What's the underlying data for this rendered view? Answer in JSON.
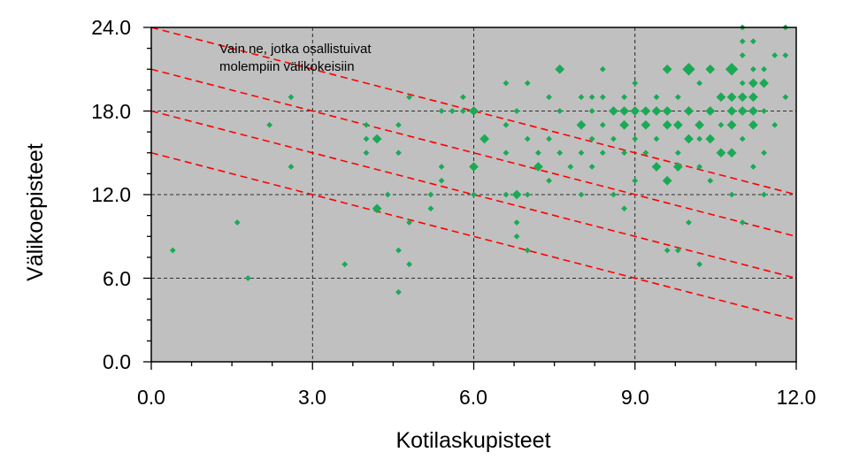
{
  "chart_data": {
    "type": "scatter",
    "title": "",
    "xlabel": "Kotilaskupisteet",
    "ylabel": "Välikoepisteet",
    "xlim": [
      0,
      12
    ],
    "ylim": [
      0,
      24
    ],
    "x_ticks": [
      "0.0",
      "3.0",
      "6.0",
      "9.0",
      "12.0"
    ],
    "y_ticks": [
      "0.0",
      "6.0",
      "12.0",
      "18.0",
      "24.0"
    ],
    "grid": true,
    "background": "#c0c0c0",
    "annotation": [
      "Vain ne, jotka osallistuivat",
      "molempiin välikokeisiin"
    ],
    "reference_lines": [
      {
        "intercept": 15,
        "slope": -1
      },
      {
        "intercept": 18,
        "slope": -1
      },
      {
        "intercept": 21,
        "slope": -1
      },
      {
        "intercept": 24,
        "slope": -1
      }
    ],
    "colors": {
      "points": "#1aaa55",
      "reference": "#ff0000",
      "grid": "#000000"
    },
    "points": [
      [
        0.4,
        8,
        1
      ],
      [
        1.6,
        10,
        1
      ],
      [
        1.8,
        6,
        1
      ],
      [
        2.2,
        17,
        1
      ],
      [
        2.6,
        19,
        1
      ],
      [
        2.6,
        14,
        1
      ],
      [
        3.6,
        7,
        1
      ],
      [
        4.0,
        17,
        1
      ],
      [
        4.0,
        15,
        1
      ],
      [
        4.0,
        16,
        1
      ],
      [
        4.2,
        16,
        2
      ],
      [
        4.2,
        11,
        2
      ],
      [
        4.4,
        12,
        1
      ],
      [
        4.6,
        15,
        1
      ],
      [
        4.6,
        8,
        1
      ],
      [
        4.6,
        5,
        1
      ],
      [
        4.8,
        7,
        1
      ],
      [
        4.8,
        10,
        1
      ],
      [
        4.8,
        19,
        1
      ],
      [
        4.6,
        17,
        1
      ],
      [
        5.2,
        11,
        1
      ],
      [
        5.2,
        12,
        1
      ],
      [
        5.4,
        14,
        1
      ],
      [
        5.4,
        13,
        1
      ],
      [
        5.4,
        18,
        1
      ],
      [
        5.6,
        18,
        1
      ],
      [
        5.8,
        18,
        1
      ],
      [
        5.8,
        19,
        1
      ],
      [
        6.0,
        14,
        2
      ],
      [
        6.0,
        18,
        2
      ],
      [
        6.0,
        12,
        1
      ],
      [
        6.2,
        16,
        2
      ],
      [
        6.6,
        20,
        1
      ],
      [
        6.6,
        17,
        1
      ],
      [
        6.6,
        15,
        1
      ],
      [
        6.6,
        12,
        1
      ],
      [
        6.8,
        12,
        2
      ],
      [
        6.8,
        10,
        1
      ],
      [
        6.8,
        9,
        1
      ],
      [
        6.8,
        18,
        1
      ],
      [
        7.0,
        20,
        1
      ],
      [
        7.0,
        16,
        1
      ],
      [
        7.0,
        12,
        1
      ],
      [
        7.0,
        8,
        1
      ],
      [
        7.2,
        14,
        2
      ],
      [
        7.2,
        15,
        1
      ],
      [
        7.4,
        19,
        1
      ],
      [
        7.4,
        16,
        1
      ],
      [
        7.4,
        13,
        1
      ],
      [
        7.6,
        21,
        2
      ],
      [
        7.6,
        18,
        1
      ],
      [
        7.6,
        15,
        1
      ],
      [
        7.8,
        14,
        1
      ],
      [
        8.0,
        19,
        1
      ],
      [
        8.0,
        17,
        2
      ],
      [
        8.0,
        15,
        1
      ],
      [
        8.0,
        12,
        1
      ],
      [
        8.2,
        19,
        1
      ],
      [
        8.2,
        18,
        1
      ],
      [
        8.2,
        16,
        1
      ],
      [
        8.2,
        14,
        1
      ],
      [
        8.4,
        21,
        1
      ],
      [
        8.4,
        19,
        1
      ],
      [
        8.4,
        17,
        1
      ],
      [
        8.4,
        15,
        1
      ],
      [
        8.6,
        18,
        2
      ],
      [
        8.6,
        16,
        1
      ],
      [
        8.6,
        12,
        1
      ],
      [
        8.8,
        19,
        1
      ],
      [
        8.8,
        18,
        2
      ],
      [
        8.8,
        17,
        2
      ],
      [
        8.8,
        15,
        1
      ],
      [
        8.8,
        11,
        1
      ],
      [
        9.0,
        18,
        2
      ],
      [
        9.0,
        16,
        1
      ],
      [
        9.0,
        13,
        1
      ],
      [
        9.0,
        20,
        1
      ],
      [
        9.2,
        17,
        2
      ],
      [
        9.2,
        18,
        2
      ],
      [
        9.2,
        15,
        1
      ],
      [
        9.4,
        19,
        1
      ],
      [
        9.4,
        18,
        2
      ],
      [
        9.4,
        16,
        1
      ],
      [
        9.4,
        14,
        2
      ],
      [
        9.6,
        21,
        2
      ],
      [
        9.6,
        18,
        2
      ],
      [
        9.6,
        17,
        2
      ],
      [
        9.6,
        13,
        2
      ],
      [
        9.6,
        8,
        1
      ],
      [
        9.8,
        19,
        1
      ],
      [
        9.8,
        17,
        2
      ],
      [
        9.8,
        15,
        1
      ],
      [
        9.8,
        14,
        2
      ],
      [
        9.8,
        8,
        1
      ],
      [
        10.0,
        21,
        3
      ],
      [
        10.0,
        18,
        2
      ],
      [
        10.0,
        16,
        2
      ],
      [
        10.0,
        10,
        1
      ],
      [
        10.2,
        20,
        1
      ],
      [
        10.2,
        17,
        2
      ],
      [
        10.2,
        16,
        1
      ],
      [
        10.2,
        14,
        1
      ],
      [
        10.2,
        7,
        1
      ],
      [
        10.4,
        21,
        2
      ],
      [
        10.4,
        18,
        2
      ],
      [
        10.4,
        16,
        2
      ],
      [
        10.4,
        13,
        1
      ],
      [
        10.6,
        19,
        2
      ],
      [
        10.6,
        17,
        1
      ],
      [
        10.6,
        15,
        2
      ],
      [
        10.8,
        21,
        3
      ],
      [
        10.8,
        19,
        2
      ],
      [
        10.8,
        18,
        2
      ],
      [
        10.8,
        17,
        2
      ],
      [
        10.8,
        15,
        2
      ],
      [
        10.8,
        12,
        1
      ],
      [
        11.0,
        24,
        1
      ],
      [
        11.0,
        23,
        1
      ],
      [
        11.0,
        22,
        1
      ],
      [
        11.0,
        20,
        1
      ],
      [
        11.0,
        19,
        2
      ],
      [
        11.0,
        18,
        2
      ],
      [
        11.0,
        16,
        1
      ],
      [
        11.0,
        10,
        1
      ],
      [
        11.2,
        23,
        1
      ],
      [
        11.2,
        21,
        1
      ],
      [
        11.2,
        20,
        2
      ],
      [
        11.2,
        19,
        2
      ],
      [
        11.2,
        18,
        2
      ],
      [
        11.2,
        17,
        2
      ],
      [
        11.2,
        14,
        1
      ],
      [
        11.4,
        21,
        1
      ],
      [
        11.4,
        20,
        2
      ],
      [
        11.4,
        18,
        1
      ],
      [
        11.4,
        15,
        1
      ],
      [
        11.4,
        12,
        1
      ],
      [
        11.6,
        22,
        1
      ],
      [
        11.6,
        17,
        1
      ],
      [
        11.8,
        24,
        1
      ],
      [
        11.8,
        22,
        1
      ],
      [
        11.8,
        19,
        1
      ]
    ]
  }
}
